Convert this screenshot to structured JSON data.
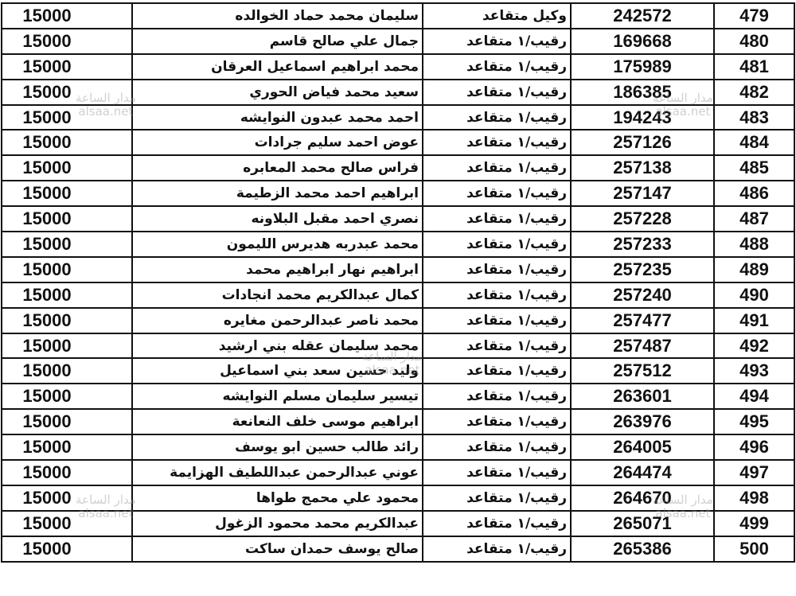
{
  "table": {
    "rows": [
      {
        "no": "479",
        "id": "242572",
        "rank": "وكيل متقاعد",
        "name": "سليمان محمد حماد الخوالده",
        "amount": "15000"
      },
      {
        "no": "480",
        "id": "169668",
        "rank": "رقيب/١ متقاعد",
        "name": "جمال علي صالح قاسم",
        "amount": "15000"
      },
      {
        "no": "481",
        "id": "175989",
        "rank": "رقيب/١ متقاعد",
        "name": "محمد ابراهيم اسماعيل العرقان",
        "amount": "15000"
      },
      {
        "no": "482",
        "id": "186385",
        "rank": "رقيب/١ متقاعد",
        "name": "سعيد محمد فياض الحوري",
        "amount": "15000"
      },
      {
        "no": "483",
        "id": "194243",
        "rank": "رقيب/١ متقاعد",
        "name": "احمد محمد عبدون النوايشه",
        "amount": "15000"
      },
      {
        "no": "484",
        "id": "257126",
        "rank": "رقيب/١ متقاعد",
        "name": "عوض احمد سليم جرادات",
        "amount": "15000"
      },
      {
        "no": "485",
        "id": "257138",
        "rank": "رقيب/١ متقاعد",
        "name": "فراس صالح محمد المعابره",
        "amount": "15000"
      },
      {
        "no": "486",
        "id": "257147",
        "rank": "رقيب/١ متقاعد",
        "name": "ابراهيم احمد محمد الزطيمة",
        "amount": "15000"
      },
      {
        "no": "487",
        "id": "257228",
        "rank": "رقيب/١ متقاعد",
        "name": "نصري احمد مقبل البلاونه",
        "amount": "15000"
      },
      {
        "no": "488",
        "id": "257233",
        "rank": "رقيب/١ متقاعد",
        "name": "محمد عبدربه هديرس الليمون",
        "amount": "15000"
      },
      {
        "no": "489",
        "id": "257235",
        "rank": "رقيب/١ متقاعد",
        "name": "ابراهيم نهار ابراهيم محمد",
        "amount": "15000"
      },
      {
        "no": "490",
        "id": "257240",
        "rank": "رقيب/١ متقاعد",
        "name": "كمال عبدالكريم محمد انجادات",
        "amount": "15000"
      },
      {
        "no": "491",
        "id": "257477",
        "rank": "رقيب/١ متقاعد",
        "name": "محمد ناصر عبدالرحمن مغايره",
        "amount": "15000"
      },
      {
        "no": "492",
        "id": "257487",
        "rank": "رقيب/١ متقاعد",
        "name": "محمد سليمان عقله بني ارشيد",
        "amount": "15000"
      },
      {
        "no": "493",
        "id": "257512",
        "rank": "رقيب/١ متقاعد",
        "name": "وليد حسين سعد بني اسماعيل",
        "amount": "15000"
      },
      {
        "no": "494",
        "id": "263601",
        "rank": "رقيب/١ متقاعد",
        "name": "تيسير سليمان مسلم النوايشه",
        "amount": "15000"
      },
      {
        "no": "495",
        "id": "263976",
        "rank": "رقيب/١ متقاعد",
        "name": "ابراهيم موسى خلف النعانعة",
        "amount": "15000"
      },
      {
        "no": "496",
        "id": "264005",
        "rank": "رقيب/١ متقاعد",
        "name": "رائد طالب حسين ابو يوسف",
        "amount": "15000"
      },
      {
        "no": "497",
        "id": "264474",
        "rank": "رقيب/١ متقاعد",
        "name": "عوني عبدالرحمن عبداللطيف الهزايمة",
        "amount": "15000"
      },
      {
        "no": "498",
        "id": "264670",
        "rank": "رقيب/١ متقاعد",
        "name": "محمود علي محمج طواها",
        "amount": "15000"
      },
      {
        "no": "499",
        "id": "265071",
        "rank": "رقيب/١ متقاعد",
        "name": "عبدالكريم محمد محمود الزغول",
        "amount": "15000"
      },
      {
        "no": "500",
        "id": "265386",
        "rank": "رقيب/١ متقاعد",
        "name": "صالح يوسف حمدان ساكت",
        "amount": "15000"
      }
    ]
  },
  "watermark": {
    "line1": "مدار الساعة",
    "line2": "alsaa.net"
  }
}
